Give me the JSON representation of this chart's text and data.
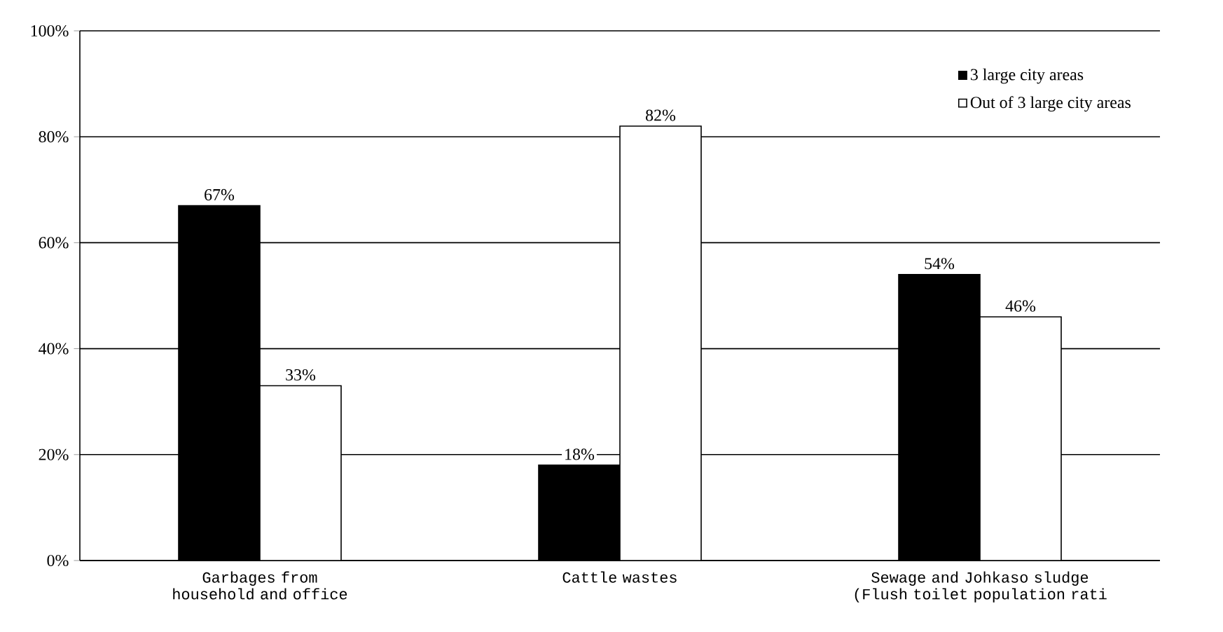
{
  "chart_data": {
    "type": "bar",
    "categories": [
      "Garbages from household and office",
      "Cattle wastes",
      "Sewage and Johkaso sludge (Flush toilet population rati"
    ],
    "series": [
      {
        "name": "3 large city areas",
        "color": "#000000",
        "values": [
          67,
          18,
          54
        ],
        "value_labels": [
          "67%",
          "18%",
          "54%"
        ]
      },
      {
        "name": "Out of 3 large city areas",
        "color": "#ffffff",
        "values": [
          33,
          82,
          46
        ],
        "value_labels": [
          "33%",
          "82%",
          "46%"
        ]
      }
    ],
    "ylim": [
      0,
      100
    ],
    "yticks": [
      {
        "value": 0,
        "label": "0%"
      },
      {
        "value": 20,
        "label": "20%"
      },
      {
        "value": 40,
        "label": "40%"
      },
      {
        "value": 60,
        "label": "60%"
      },
      {
        "value": 80,
        "label": "80%"
      },
      {
        "value": 100,
        "label": "100%"
      }
    ],
    "grid": "y",
    "legend": "top right"
  }
}
